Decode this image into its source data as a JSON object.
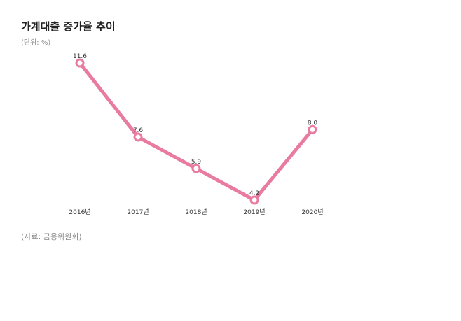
{
  "title": "가계대출 증가율 추이",
  "unit": "(단위: %)",
  "source": "(자료: 금융위원회)",
  "chart_data": {
    "type": "line",
    "title": "가계대출 증가율 추이",
    "xlabel": "",
    "ylabel": "",
    "categories": [
      "2016년",
      "2017년",
      "2018년",
      "2019년",
      "2020년"
    ],
    "series": [
      {
        "values": [
          11.6,
          7.6,
          5.9,
          4.2,
          8.0
        ],
        "labels": [
          "11.6",
          "7.6",
          "5.9",
          "4.2",
          "8.0"
        ],
        "color": "#e97ba0"
      }
    ],
    "grid": false,
    "legend": "none"
  }
}
